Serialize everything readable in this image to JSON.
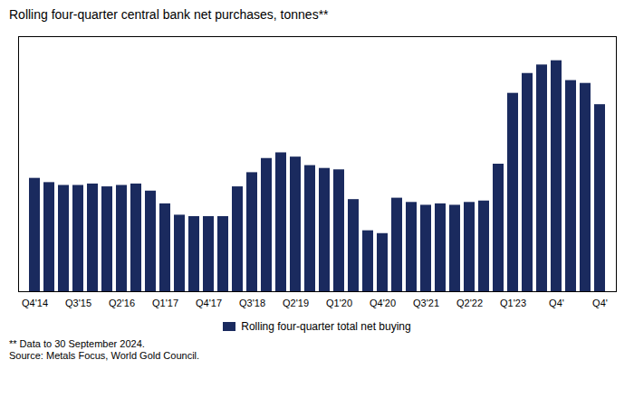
{
  "chart_data": {
    "type": "bar",
    "title": "Rolling four-quarter central bank net purchases, tonnes**",
    "categories": [
      "Q4'14",
      null,
      null,
      "Q3'15",
      null,
      null,
      "Q2'16",
      null,
      null,
      "Q1'17",
      null,
      null,
      "Q4'17",
      null,
      null,
      "Q3'18",
      null,
      null,
      "Q2'19",
      null,
      null,
      "Q1'20",
      null,
      null,
      "Q4'20",
      null,
      null,
      "Q3'21",
      null,
      null,
      "Q2'22",
      null,
      null,
      "Q1'23",
      null,
      null,
      "Q4'",
      null,
      null,
      "Q4'"
    ],
    "series": [
      {
        "name": "Rolling four-quarter total net buying",
        "color": "#1a2a5e",
        "values": [
          400,
          385,
          375,
          375,
          380,
          370,
          375,
          380,
          355,
          310,
          270,
          265,
          265,
          265,
          370,
          420,
          470,
          490,
          475,
          445,
          435,
          430,
          325,
          215,
          205,
          330,
          315,
          305,
          310,
          305,
          315,
          320,
          450,
          700,
          770,
          800,
          815,
          745,
          735,
          660
        ]
      }
    ],
    "ylim": [
      0,
      900
    ],
    "yticks": [],
    "grid": false,
    "tick_labels": "x",
    "legend": "bottom",
    "annotations": [
      "** Data to 30 September 2024.",
      "Source: Metals Focus, World Gold Council."
    ]
  }
}
